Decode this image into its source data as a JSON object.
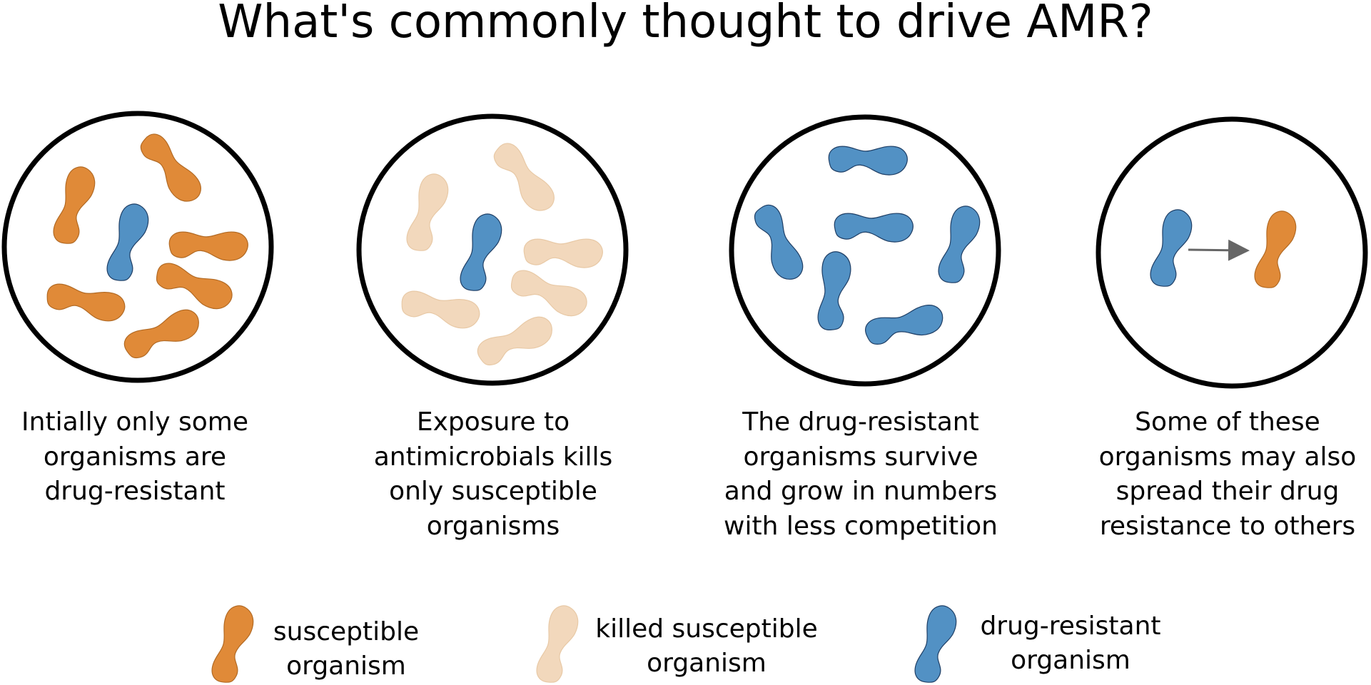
{
  "title": "What's commonly thought to drive AMR?",
  "colors": {
    "susceptible": "#E08A38",
    "killed": "#F2D8BC",
    "resistant": "#5291C4",
    "outline": "#000000",
    "arrow": "#666666"
  },
  "panels": [
    {
      "caption": [
        "Intially only some",
        "organisms are",
        "drug-resistant"
      ]
    },
    {
      "caption": [
        "Exposure to",
        "antimicrobials kills",
        "only susceptible",
        "organisms"
      ]
    },
    {
      "caption": [
        "The drug-resistant",
        "organisms survive",
        "and grow in numbers",
        "with less competition"
      ]
    },
    {
      "caption": [
        "Some of these",
        "organisms may also",
        "spread their drug",
        "resistance to others"
      ]
    }
  ],
  "legend": [
    {
      "icon": "susceptible-organism-icon",
      "lines": [
        "susceptible",
        "organism"
      ]
    },
    {
      "icon": "killed-organism-icon",
      "lines": [
        "killed susceptible",
        "organism"
      ]
    },
    {
      "icon": "resistant-organism-icon",
      "lines": [
        "drug-resistant",
        "organism"
      ]
    }
  ]
}
